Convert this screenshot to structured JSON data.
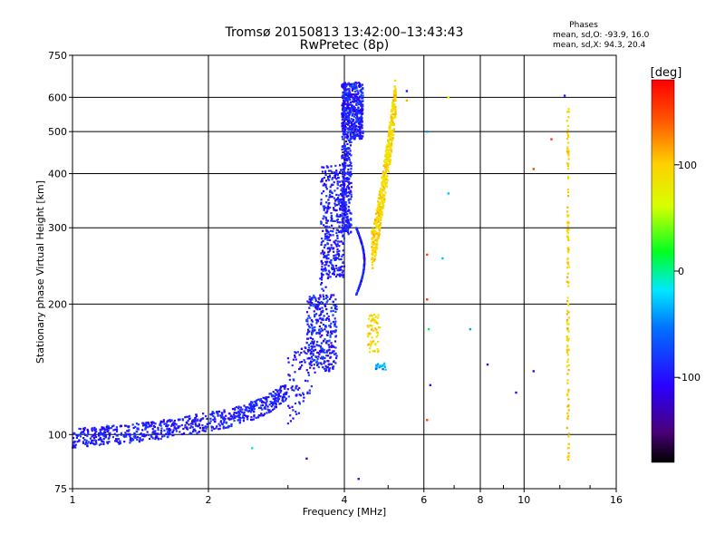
{
  "chart_data": {
    "type": "scatter",
    "title_line1": "Tromsø 20150813 13:42:00–13:43:43",
    "title_line2": "RwPretec (8p)",
    "xlabel": "Frequency [MHz]",
    "ylabel": "Stationary phase Virtual Height [km]",
    "xscale": "log",
    "yscale": "log",
    "xlim": [
      1,
      16
    ],
    "ylim": [
      75,
      750
    ],
    "x_ticks": [
      1,
      2,
      4,
      6,
      8,
      10,
      16
    ],
    "x_tick_labels": [
      "1",
      "2",
      "4",
      "6",
      "8",
      "10",
      "16"
    ],
    "y_ticks": [
      75,
      100,
      200,
      300,
      400,
      500,
      600,
      750
    ],
    "y_tick_labels": [
      "75",
      "100",
      "200",
      "300",
      "400",
      "500",
      "600",
      "750"
    ],
    "grid": true,
    "phase_legend": {
      "title": "Phases",
      "line1": "mean, sd,O: -93.9, 16.0",
      "line2": "mean, sd,X:  94.3, 20.4"
    },
    "colorbar": {
      "label": "[deg]",
      "range": [
        -180,
        180
      ],
      "tick_values": [
        100,
        0,
        -100
      ],
      "tick_labels": [
        "100",
        "0",
        "-100"
      ],
      "colormap": "rainbow (black-purple-blue-cyan-green-yellow-orange-red)"
    },
    "series": [
      {
        "name": "O-mode (blue/purple, phase ≈ -94°)",
        "phase_deg": -94,
        "trace": {
          "x": [
            1.0,
            1.1,
            1.2,
            1.3,
            1.4,
            1.5,
            1.6,
            1.7,
            1.8,
            1.9,
            2.0,
            2.2,
            2.4,
            2.6,
            2.8,
            3.0,
            3.2,
            3.35,
            3.5,
            3.6,
            3.7,
            3.8,
            3.9,
            3.95,
            4.0
          ],
          "y": [
            98,
            99,
            100,
            100,
            101,
            102,
            103,
            104,
            105,
            106,
            107,
            109,
            112,
            115,
            120,
            126,
            135,
            148,
            175,
            240,
            270,
            300,
            340,
            400,
            620
          ]
        }
      },
      {
        "name": "X-mode (yellow/orange, phase ≈ +94°)",
        "phase_deg": 94,
        "trace": {
          "x": [
            4.6,
            4.7,
            4.8,
            4.9,
            5.0,
            5.1,
            5.2
          ],
          "y": [
            265,
            290,
            330,
            380,
            440,
            510,
            600
          ]
        }
      },
      {
        "name": "X-mode (12.5 MHz column)",
        "phase_deg": 100,
        "trace": {
          "x": [
            12.5,
            12.5
          ],
          "y": [
            85,
            580
          ]
        }
      }
    ]
  }
}
